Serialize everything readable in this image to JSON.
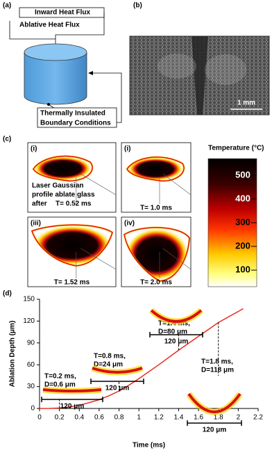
{
  "panel_a": {
    "label": "(a)",
    "inward": "Inward Heat Flux",
    "ablative": "Ablative Heat Flux",
    "boundary": [
      "Thermally Insulated",
      "Boundary Conditions"
    ]
  },
  "panel_b": {
    "label": "(b)",
    "scale_bar": "1 mm"
  },
  "panel_c": {
    "label": "(c)",
    "images": [
      {
        "label": "(i)",
        "caption": "T= 0.52 ms",
        "note": [
          "Laser Gaussian",
          "profile ablate glass",
          "after"
        ]
      },
      {
        "label": "(i)",
        "caption": "T= 1.0 ms"
      },
      {
        "label": "(iii)",
        "caption": "T= 1.52 ms"
      },
      {
        "label": "(iv)",
        "caption": "T= 2.0 ms"
      }
    ],
    "colorbar": {
      "title": "Temperature (°C)",
      "lim": [
        30,
        570
      ],
      "ticks": [
        100,
        200,
        300,
        400,
        500
      ]
    }
  },
  "chart_data": {
    "type": "line",
    "label": "(d)",
    "xlabel": "Time (ms)",
    "ylabel": "Ablation Depth (μm)",
    "x": [
      0,
      0.1,
      0.2,
      0.3,
      0.4,
      0.5,
      0.6,
      0.7,
      0.8,
      0.9,
      1.0,
      1.2,
      1.4,
      1.6,
      1.8,
      2.05
    ],
    "series": [
      {
        "color": "#e8291c",
        "values": [
          0,
          0.1,
          0.6,
          2,
          4.5,
          8,
          12,
          17.5,
          24,
          32,
          41,
          60,
          80,
          99,
          118,
          137
        ]
      }
    ],
    "xlim": [
      0,
      2.2
    ],
    "xticks": [
      0,
      0.2,
      0.4,
      0.6,
      0.8,
      1,
      1.2,
      1.4,
      1.6,
      1.8,
      2,
      2.2
    ],
    "ylim": [
      0,
      150
    ],
    "yticks": [
      0,
      30,
      60,
      90,
      120,
      150
    ],
    "annotations": [
      {
        "lines": [
          "T=0.2 ms,",
          "D=0.6 μm"
        ],
        "scale": "120 μm"
      },
      {
        "lines": [
          "T=0.8 ms,",
          "D=24 μm"
        ],
        "scale": "120 μm"
      },
      {
        "lines": [
          "T=1.4 ms,",
          "D=80 μm"
        ],
        "scale": "120 μm"
      },
      {
        "lines": [
          "T=1.8 ms,",
          "D=118 μm"
        ],
        "scale": "120 μm"
      }
    ]
  }
}
